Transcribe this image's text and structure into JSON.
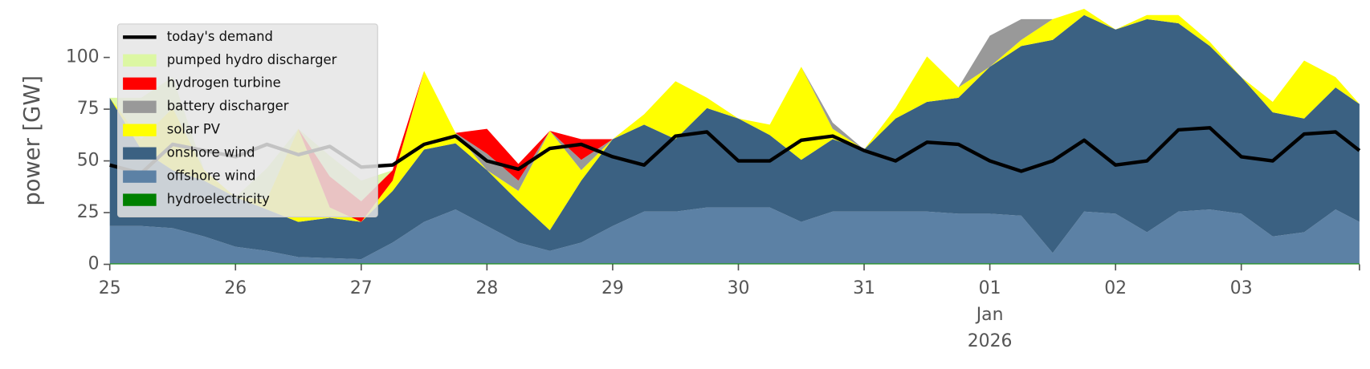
{
  "chart_data": {
    "type": "area",
    "ylabel": "power [GW]",
    "x": [
      0,
      0.25,
      0.5,
      0.75,
      1,
      1.25,
      1.5,
      1.75,
      2,
      2.25,
      2.5,
      2.75,
      3,
      3.25,
      3.5,
      3.75,
      4,
      4.25,
      4.5,
      4.75,
      5,
      5.25,
      5.5,
      5.75,
      6,
      6.25,
      6.5,
      6.75,
      7,
      7.25,
      7.5,
      7.75,
      8,
      8.25,
      8.5,
      8.75,
      9,
      9.25,
      9.5,
      9.75,
      9.94
    ],
    "xlim": [
      0,
      9.94
    ],
    "xticks": [
      {
        "value": 0,
        "label": "25"
      },
      {
        "value": 1,
        "label": "26"
      },
      {
        "value": 2,
        "label": "27"
      },
      {
        "value": 3,
        "label": "28"
      },
      {
        "value": 4,
        "label": "29"
      },
      {
        "value": 5,
        "label": "30"
      },
      {
        "value": 6,
        "label": "31"
      },
      {
        "value": 7,
        "label": "01\nJan\n2026"
      },
      {
        "value": 8,
        "label": "02"
      },
      {
        "value": 9,
        "label": "03"
      }
    ],
    "ylim": [
      0,
      120
    ],
    "yticks": [
      0,
      25,
      50,
      75,
      100
    ],
    "legend": "upper left",
    "line": {
      "name": "today's demand",
      "color": "#000000",
      "values": [
        48,
        44,
        58,
        55,
        52,
        58,
        53,
        57,
        47,
        48,
        58,
        62,
        50,
        46,
        56,
        58,
        52,
        48,
        62,
        64,
        50,
        50,
        60,
        62,
        55,
        50,
        59,
        58,
        50,
        45,
        50,
        60,
        48,
        50,
        65,
        66,
        52,
        50,
        63,
        64,
        55
      ]
    },
    "series": [
      {
        "name": "pumped hydro discharger",
        "color": "#dcf7a3",
        "values": [
          0,
          20,
          15,
          0,
          0,
          15,
          0,
          10,
          10,
          0,
          0,
          0,
          0,
          0,
          0,
          0,
          0,
          0,
          0,
          0,
          0,
          0,
          0,
          0,
          0,
          0,
          0,
          0,
          0,
          0,
          0,
          0,
          0,
          0,
          0,
          0,
          0,
          0,
          0,
          0,
          0
        ]
      },
      {
        "name": "hydrogen turbine",
        "color": "#ff0000",
        "values": [
          0,
          0,
          0,
          0,
          0,
          0,
          0,
          15,
          10,
          5,
          0,
          0,
          12,
          8,
          0,
          10,
          0,
          0,
          0,
          0,
          0,
          0,
          0,
          0,
          0,
          0,
          0,
          0,
          0,
          0,
          0,
          0,
          0,
          0,
          0,
          0,
          0,
          0,
          0,
          0,
          0
        ]
      },
      {
        "name": "battery discharger",
        "color": "#999999",
        "values": [
          0,
          0,
          0,
          0,
          0,
          0,
          0,
          0,
          0,
          0,
          0,
          0,
          8,
          5,
          0,
          5,
          0,
          0,
          0,
          0,
          0,
          0,
          0,
          3,
          0,
          0,
          0,
          0,
          15,
          10,
          0,
          0,
          0,
          0,
          0,
          0,
          0,
          0,
          0,
          0,
          0
        ]
      },
      {
        "name": "solar PV",
        "color": "#ffff00",
        "values": [
          0,
          5,
          30,
          5,
          0,
          5,
          45,
          5,
          0,
          5,
          38,
          5,
          0,
          5,
          48,
          5,
          0,
          5,
          28,
          5,
          0,
          5,
          45,
          5,
          0,
          5,
          22,
          5,
          0,
          3,
          10,
          3,
          0,
          2,
          4,
          2,
          0,
          5,
          28,
          5,
          0
        ]
      },
      {
        "name": "onshore wind",
        "color": "#3b6182",
        "values": [
          62,
          37,
          28,
          27,
          24,
          20,
          17,
          19.5,
          18,
          25,
          35,
          32,
          27,
          20,
          10,
          30,
          42,
          42,
          35,
          48,
          43,
          35,
          30,
          35,
          30,
          45,
          53,
          56,
          71,
          82,
          103,
          95,
          89,
          103,
          91,
          79,
          66,
          60,
          55,
          59,
          57
        ]
      },
      {
        "name": "offshore wind",
        "color": "#5c81a5",
        "values": [
          18,
          18,
          17,
          13,
          8,
          6,
          3,
          2.5,
          2,
          10,
          20,
          26,
          18,
          10,
          6,
          10,
          18,
          25,
          25,
          27,
          27,
          27,
          20,
          25,
          25,
          25,
          25,
          24,
          24,
          23,
          5,
          25,
          24,
          15,
          25,
          26,
          24,
          13,
          15,
          26,
          20
        ]
      },
      {
        "name": "hydroelectricity",
        "color": "#008000",
        "values": [
          0.5,
          0.5,
          0.5,
          0.5,
          0.5,
          0.5,
          0.5,
          0.5,
          0.5,
          0.5,
          0.5,
          0.5,
          0.5,
          0.5,
          0.5,
          0.5,
          0.5,
          0.5,
          0.5,
          0.5,
          0.5,
          0.5,
          0.5,
          0.5,
          0.5,
          0.5,
          0.5,
          0.5,
          0.5,
          0.5,
          0.5,
          0.5,
          0.5,
          0.5,
          0.5,
          0.5,
          0.5,
          0.5,
          0.5,
          0.5,
          0.5
        ]
      }
    ]
  }
}
